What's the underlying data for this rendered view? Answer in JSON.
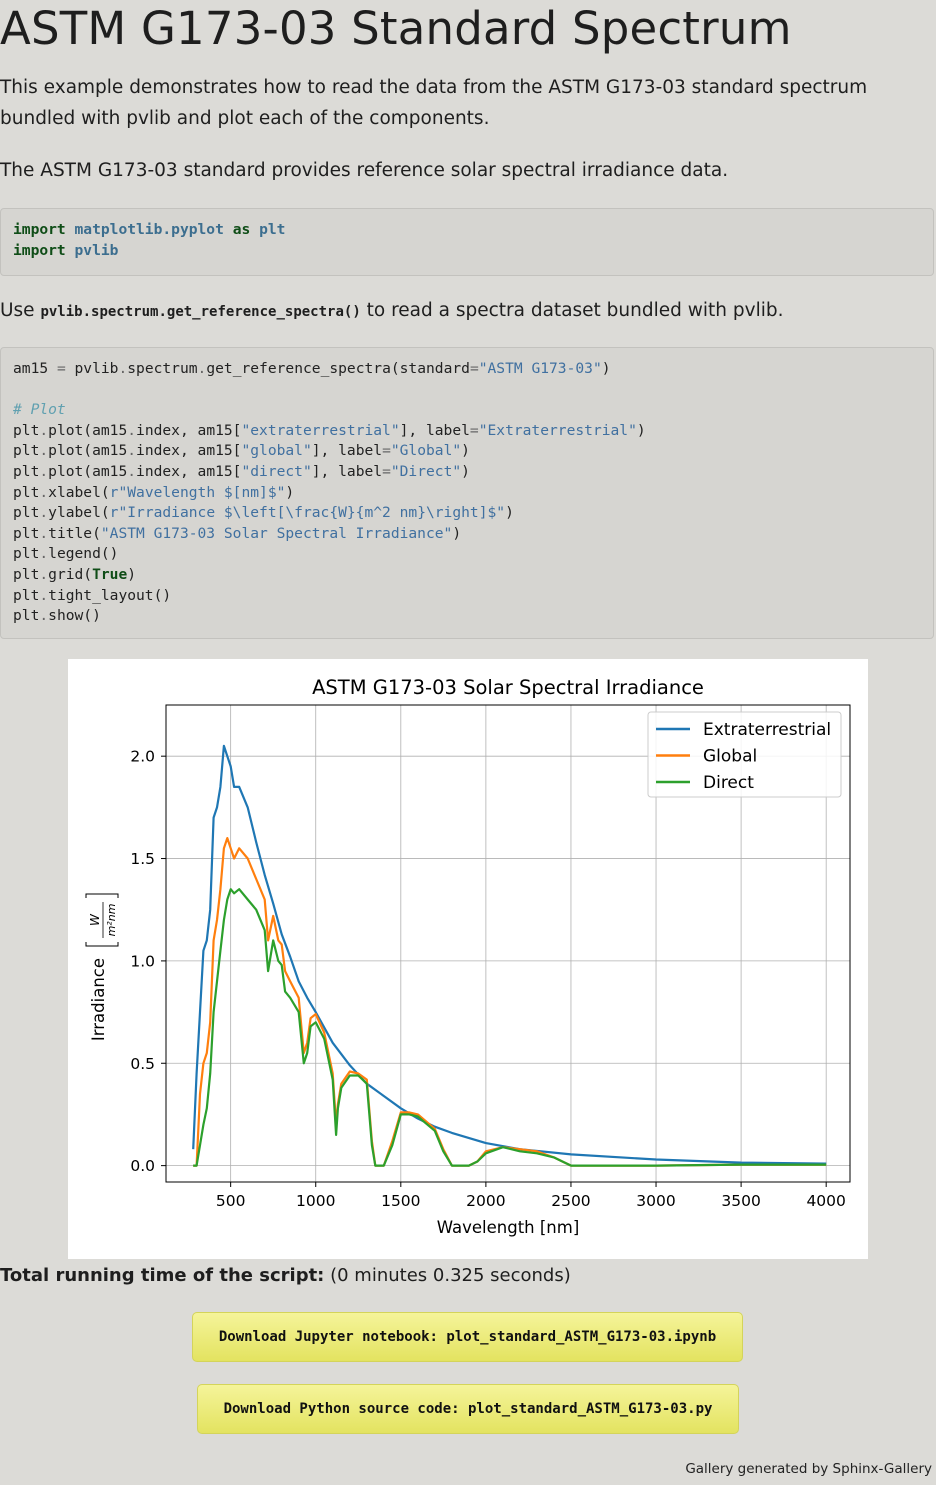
{
  "page": {
    "title": "ASTM G173-03 Standard Spectrum",
    "intro_1": "This example demonstrates how to read the data from the ASTM G173-03 standard spectrum bundled with pvlib and plot each of the components.",
    "intro_2": "The ASTM G173-03 standard provides reference solar spectral irradiance data.",
    "use_prefix": "Use ",
    "use_code": "pvlib.spectrum.get_reference_spectra()",
    "use_suffix": " to read a spectra dataset bundled with pvlib.",
    "runtime_label": "Total running time of the script:",
    "runtime_value": " (0 minutes 0.325 seconds)",
    "download_notebook": "Download Jupyter notebook: plot_standard_ASTM_G173-03.ipynb",
    "download_python": "Download Python source code: plot_standard_ASTM_G173-03.py",
    "footer": "Gallery generated by Sphinx-Gallery"
  },
  "code_block_1": {
    "lines": [
      [
        [
          "kw",
          "import"
        ],
        [
          "t",
          " "
        ],
        [
          "mod2",
          "matplotlib.pyplot"
        ],
        [
          "t",
          " "
        ],
        [
          "kw",
          "as"
        ],
        [
          "t",
          " "
        ],
        [
          "mod2",
          "plt"
        ]
      ],
      [
        [
          "kw",
          "import"
        ],
        [
          "t",
          " "
        ],
        [
          "mod2",
          "pvlib"
        ]
      ]
    ]
  },
  "code_block_2": {
    "lines": [
      [
        [
          "t",
          "am15 "
        ],
        [
          "op",
          "="
        ],
        [
          "t",
          " pvlib"
        ],
        [
          "op",
          "."
        ],
        [
          "t",
          "spectrum"
        ],
        [
          "op",
          "."
        ],
        [
          "t",
          "get_reference_spectra(standard"
        ],
        [
          "op",
          "="
        ],
        [
          "str",
          "\"ASTM G173-03\""
        ],
        [
          "t",
          ")"
        ]
      ],
      [],
      [
        [
          "cmt",
          "# Plot"
        ]
      ],
      [
        [
          "t",
          "plt"
        ],
        [
          "op",
          "."
        ],
        [
          "t",
          "plot(am15"
        ],
        [
          "op",
          "."
        ],
        [
          "t",
          "index, am15["
        ],
        [
          "str",
          "\"extraterrestrial\""
        ],
        [
          "t",
          "], label"
        ],
        [
          "op",
          "="
        ],
        [
          "str",
          "\"Extraterrestrial\""
        ],
        [
          "t",
          ")"
        ]
      ],
      [
        [
          "t",
          "plt"
        ],
        [
          "op",
          "."
        ],
        [
          "t",
          "plot(am15"
        ],
        [
          "op",
          "."
        ],
        [
          "t",
          "index, am15["
        ],
        [
          "str",
          "\"global\""
        ],
        [
          "t",
          "], label"
        ],
        [
          "op",
          "="
        ],
        [
          "str",
          "\"Global\""
        ],
        [
          "t",
          ")"
        ]
      ],
      [
        [
          "t",
          "plt"
        ],
        [
          "op",
          "."
        ],
        [
          "t",
          "plot(am15"
        ],
        [
          "op",
          "."
        ],
        [
          "t",
          "index, am15["
        ],
        [
          "str",
          "\"direct\""
        ],
        [
          "t",
          "], label"
        ],
        [
          "op",
          "="
        ],
        [
          "str",
          "\"Direct\""
        ],
        [
          "t",
          ")"
        ]
      ],
      [
        [
          "t",
          "plt"
        ],
        [
          "op",
          "."
        ],
        [
          "t",
          "xlabel("
        ],
        [
          "str",
          "r\"Wavelength $[nm]$\""
        ],
        [
          "t",
          ")"
        ]
      ],
      [
        [
          "t",
          "plt"
        ],
        [
          "op",
          "."
        ],
        [
          "t",
          "ylabel("
        ],
        [
          "str",
          "r\"Irradiance $\\left[\\frac{W}{m^2 nm}\\right]$\""
        ],
        [
          "t",
          ")"
        ]
      ],
      [
        [
          "t",
          "plt"
        ],
        [
          "op",
          "."
        ],
        [
          "t",
          "title("
        ],
        [
          "str",
          "\"ASTM G173-03 Solar Spectral Irradiance\""
        ],
        [
          "t",
          ")"
        ]
      ],
      [
        [
          "t",
          "plt"
        ],
        [
          "op",
          "."
        ],
        [
          "t",
          "legend()"
        ]
      ],
      [
        [
          "t",
          "plt"
        ],
        [
          "op",
          "."
        ],
        [
          "t",
          "grid("
        ],
        [
          "kwc",
          "True"
        ],
        [
          "t",
          ")"
        ]
      ],
      [
        [
          "t",
          "plt"
        ],
        [
          "op",
          "."
        ],
        [
          "t",
          "tight_layout()"
        ]
      ],
      [
        [
          "t",
          "plt"
        ],
        [
          "op",
          "."
        ],
        [
          "t",
          "show()"
        ]
      ]
    ]
  },
  "chart_data": {
    "type": "line",
    "title": "ASTM G173-03 Solar Spectral Irradiance",
    "xlabel": "Wavelength [nm]",
    "ylabel_main": "Irradiance",
    "ylabel_frac_num": "W",
    "ylabel_frac_den": "m²nm",
    "xlim": [
      120,
      4140
    ],
    "ylim": [
      -0.08,
      2.25
    ],
    "xticks": [
      500,
      1000,
      1500,
      2000,
      2500,
      3000,
      3500,
      4000
    ],
    "yticks": [
      0.0,
      0.5,
      1.0,
      1.5,
      2.0
    ],
    "xtick_labels": [
      "500",
      "1000",
      "1500",
      "2000",
      "2500",
      "3000",
      "3500",
      "4000"
    ],
    "ytick_labels": [
      "0.0",
      "0.5",
      "1.0",
      "1.5",
      "2.0"
    ],
    "grid": true,
    "legend_position": "top-right",
    "series": [
      {
        "name": "Extraterrestrial",
        "color": "#1f77b4",
        "x": [
          280,
          300,
          320,
          340,
          360,
          380,
          400,
          420,
          440,
          460,
          480,
          500,
          520,
          550,
          600,
          650,
          700,
          750,
          800,
          850,
          900,
          950,
          1000,
          1100,
          1200,
          1300,
          1400,
          1500,
          1600,
          1700,
          1800,
          2000,
          2200,
          2500,
          3000,
          3500,
          4000
        ],
        "y": [
          0.08,
          0.45,
          0.75,
          1.05,
          1.1,
          1.25,
          1.7,
          1.75,
          1.85,
          2.05,
          2.0,
          1.95,
          1.85,
          1.85,
          1.75,
          1.58,
          1.42,
          1.28,
          1.13,
          1.02,
          0.9,
          0.82,
          0.75,
          0.6,
          0.49,
          0.4,
          0.34,
          0.28,
          0.23,
          0.19,
          0.16,
          0.11,
          0.08,
          0.055,
          0.03,
          0.015,
          0.01
        ]
      },
      {
        "name": "Global",
        "color": "#ff7f0e",
        "x": [
          280,
          300,
          320,
          340,
          360,
          380,
          400,
          420,
          440,
          460,
          480,
          500,
          520,
          550,
          600,
          650,
          700,
          720,
          750,
          780,
          800,
          820,
          850,
          900,
          930,
          950,
          970,
          1000,
          1050,
          1100,
          1120,
          1130,
          1150,
          1200,
          1250,
          1300,
          1330,
          1350,
          1400,
          1450,
          1500,
          1550,
          1600,
          1700,
          1750,
          1800,
          1850,
          1900,
          1950,
          2000,
          2100,
          2200,
          2300,
          2400,
          2450,
          2500,
          2600,
          2800,
          3000,
          3500,
          4000
        ],
        "y": [
          0.0,
          0.0,
          0.35,
          0.5,
          0.55,
          0.7,
          1.1,
          1.2,
          1.35,
          1.55,
          1.6,
          1.55,
          1.5,
          1.55,
          1.5,
          1.4,
          1.3,
          1.1,
          1.22,
          1.1,
          1.08,
          0.95,
          0.9,
          0.82,
          0.55,
          0.6,
          0.72,
          0.74,
          0.65,
          0.45,
          0.2,
          0.3,
          0.4,
          0.46,
          0.45,
          0.42,
          0.12,
          0.0,
          0.0,
          0.12,
          0.26,
          0.26,
          0.25,
          0.18,
          0.08,
          0.0,
          0.0,
          0.0,
          0.02,
          0.07,
          0.09,
          0.08,
          0.07,
          0.04,
          0.02,
          0.0,
          0.0,
          0.0,
          0.0,
          0.005,
          0.005
        ]
      },
      {
        "name": "Direct",
        "color": "#2ca02c",
        "x": [
          280,
          300,
          320,
          340,
          360,
          380,
          400,
          420,
          440,
          460,
          480,
          500,
          520,
          550,
          600,
          650,
          700,
          720,
          750,
          780,
          800,
          820,
          850,
          900,
          930,
          950,
          970,
          1000,
          1050,
          1100,
          1120,
          1130,
          1150,
          1200,
          1250,
          1300,
          1330,
          1350,
          1400,
          1450,
          1500,
          1550,
          1600,
          1700,
          1750,
          1800,
          1850,
          1900,
          1950,
          2000,
          2100,
          2200,
          2300,
          2400,
          2450,
          2500,
          2600,
          2800,
          3000,
          3500,
          4000
        ],
        "y": [
          0.0,
          0.0,
          0.1,
          0.2,
          0.28,
          0.45,
          0.75,
          0.9,
          1.05,
          1.2,
          1.3,
          1.35,
          1.33,
          1.35,
          1.3,
          1.25,
          1.15,
          0.95,
          1.1,
          1.0,
          0.98,
          0.85,
          0.82,
          0.75,
          0.5,
          0.55,
          0.68,
          0.7,
          0.62,
          0.42,
          0.15,
          0.28,
          0.38,
          0.44,
          0.44,
          0.4,
          0.1,
          0.0,
          0.0,
          0.1,
          0.25,
          0.25,
          0.24,
          0.17,
          0.07,
          0.0,
          0.0,
          0.0,
          0.02,
          0.06,
          0.09,
          0.07,
          0.06,
          0.04,
          0.02,
          0.0,
          0.0,
          0.0,
          0.0,
          0.005,
          0.005
        ]
      }
    ]
  }
}
